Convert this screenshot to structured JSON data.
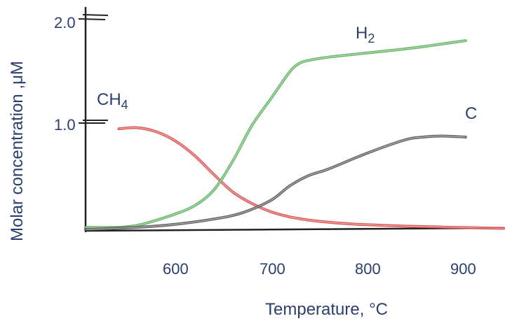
{
  "chart_data": {
    "type": "line",
    "title": "",
    "xlabel": "Temperature, °C",
    "ylabel": "Molar concentration ,μM",
    "xlim": [
      505,
      945
    ],
    "ylim": [
      0,
      2.05
    ],
    "xticks": [
      "600",
      "700",
      "800",
      "900"
    ],
    "yticks": [
      "1.0",
      "2.0"
    ],
    "grid": false,
    "series": [
      {
        "name": "CH4",
        "name_main": "CH",
        "name_sub": "4",
        "color": "#d94b4b",
        "x": [
          540,
          560,
          580,
          600,
          620,
          640,
          660,
          680,
          700,
          720,
          740,
          760,
          780,
          800,
          840,
          880,
          920,
          945
        ],
        "y": [
          0.97,
          0.98,
          0.94,
          0.85,
          0.71,
          0.53,
          0.36,
          0.25,
          0.17,
          0.12,
          0.09,
          0.07,
          0.055,
          0.045,
          0.032,
          0.022,
          0.014,
          0.01
        ]
      },
      {
        "name": "H2",
        "name_main": "H",
        "name_sub": "2",
        "color": "#5fb05f",
        "x": [
          505,
          540,
          560,
          580,
          600,
          620,
          640,
          660,
          680,
          700,
          720,
          730,
          740,
          760,
          800,
          850,
          905
        ],
        "y": [
          0.02,
          0.02,
          0.04,
          0.09,
          0.15,
          0.23,
          0.38,
          0.66,
          1.0,
          1.26,
          1.52,
          1.6,
          1.63,
          1.66,
          1.7,
          1.75,
          1.82
        ]
      },
      {
        "name": "C",
        "name_main": "C",
        "name_sub": "",
        "color": "#555555",
        "x": [
          505,
          560,
          600,
          640,
          670,
          700,
          720,
          740,
          760,
          800,
          840,
          860,
          880,
          905
        ],
        "y": [
          0.0,
          0.02,
          0.05,
          0.1,
          0.16,
          0.28,
          0.42,
          0.52,
          0.58,
          0.73,
          0.86,
          0.89,
          0.9,
          0.89
        ]
      }
    ]
  }
}
